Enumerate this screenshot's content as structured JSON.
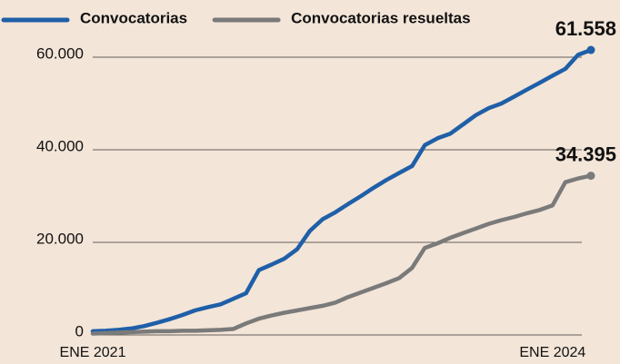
{
  "chart_data": {
    "type": "line",
    "categories": [
      "ENE 2021",
      null,
      null,
      null,
      null,
      null,
      null,
      null,
      null,
      null,
      null,
      null,
      null,
      null,
      null,
      null,
      null,
      null,
      null,
      null,
      null,
      null,
      null,
      null,
      null,
      null,
      null,
      null,
      null,
      null,
      null,
      null,
      null,
      null,
      null,
      null,
      "ENE 2024",
      null,
      null,
      null
    ],
    "series": [
      {
        "name": "Convocatorias",
        "color": "#1f5fa8",
        "values": [
          800,
          900,
          1100,
          1400,
          1900,
          2600,
          3400,
          4300,
          5300,
          6000,
          6600,
          7800,
          9000,
          14000,
          15200,
          16500,
          18500,
          22500,
          25000,
          26500,
          28300,
          30000,
          31800,
          33500,
          35000,
          36500,
          41000,
          42500,
          43500,
          45500,
          47500,
          49000,
          50000,
          51500,
          53000,
          54500,
          56000,
          57500,
          60500,
          61558
        ],
        "value_labels": [
          null,
          null,
          null,
          null,
          null,
          null,
          null,
          null,
          null,
          null,
          null,
          null,
          null,
          null,
          null,
          null,
          null,
          null,
          null,
          null,
          null,
          null,
          null,
          null,
          null,
          null,
          null,
          null,
          null,
          null,
          null,
          null,
          null,
          null,
          null,
          null,
          null,
          null,
          null,
          "61.558"
        ]
      },
      {
        "name": "Convocatorias resueltas",
        "color": "#7a7a7a",
        "values": [
          300,
          400,
          500,
          600,
          700,
          800,
          800,
          900,
          900,
          1000,
          1100,
          1300,
          2500,
          3500,
          4200,
          4800,
          5300,
          5800,
          6300,
          7000,
          8200,
          9200,
          10200,
          11200,
          12300,
          14500,
          18800,
          19800,
          21000,
          22000,
          23000,
          24000,
          24800,
          25500,
          26300,
          27000,
          28000,
          33000,
          33800,
          34395
        ],
        "value_labels": [
          null,
          null,
          null,
          null,
          null,
          null,
          null,
          null,
          null,
          null,
          null,
          null,
          null,
          null,
          null,
          null,
          null,
          null,
          null,
          null,
          null,
          null,
          null,
          null,
          null,
          null,
          null,
          null,
          null,
          null,
          null,
          null,
          null,
          null,
          null,
          null,
          null,
          null,
          null,
          "34.395"
        ]
      }
    ],
    "ylim": [
      0,
      60000
    ],
    "yticks": [
      0,
      {
        "value": 20000,
        "label": "20.000"
      },
      {
        "value": 40000,
        "label": "40.000"
      },
      {
        "value": 60000,
        "label": "60.000"
      }
    ],
    "grid": true
  }
}
